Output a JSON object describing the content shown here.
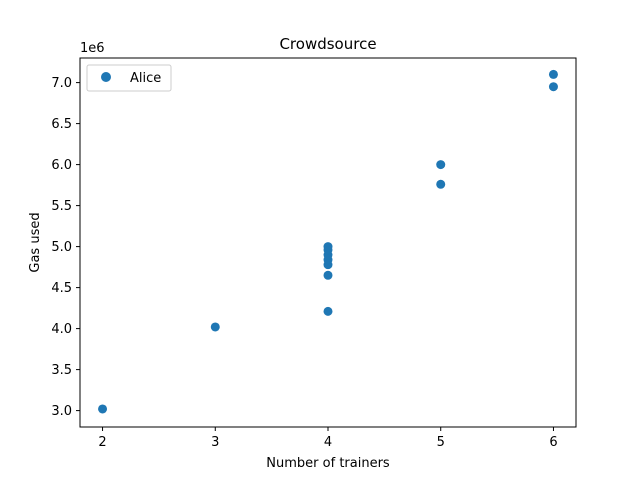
{
  "chart_data": {
    "type": "scatter",
    "title": "Crowdsource",
    "xlabel": "Number of trainers",
    "ylabel": "Gas used",
    "y_offset_label": "1e6",
    "xlim": [
      1.8,
      6.2
    ],
    "ylim": [
      2.8,
      7.3
    ],
    "x_ticks": [
      2,
      3,
      4,
      5,
      6
    ],
    "x_tick_labels": [
      "2",
      "3",
      "4",
      "5",
      "6"
    ],
    "y_ticks": [
      3.0,
      3.5,
      4.0,
      4.5,
      5.0,
      5.5,
      6.0,
      6.5,
      7.0
    ],
    "y_tick_labels": [
      "3.0",
      "3.5",
      "4.0",
      "4.5",
      "5.0",
      "5.5",
      "6.0",
      "6.5",
      "7.0"
    ],
    "grid": false,
    "legend_position": "top-left",
    "series": [
      {
        "name": "Alice",
        "color": "#1f77b4",
        "points": [
          {
            "x": 2,
            "y": 3.02
          },
          {
            "x": 3,
            "y": 4.02
          },
          {
            "x": 4,
            "y": 4.21
          },
          {
            "x": 4,
            "y": 4.65
          },
          {
            "x": 4,
            "y": 4.78
          },
          {
            "x": 4,
            "y": 4.84
          },
          {
            "x": 4,
            "y": 4.9
          },
          {
            "x": 4,
            "y": 4.96
          },
          {
            "x": 4,
            "y": 5.0
          },
          {
            "x": 5,
            "y": 5.76
          },
          {
            "x": 5,
            "y": 6.0
          },
          {
            "x": 6,
            "y": 6.95
          },
          {
            "x": 6,
            "y": 7.1
          }
        ]
      }
    ]
  }
}
